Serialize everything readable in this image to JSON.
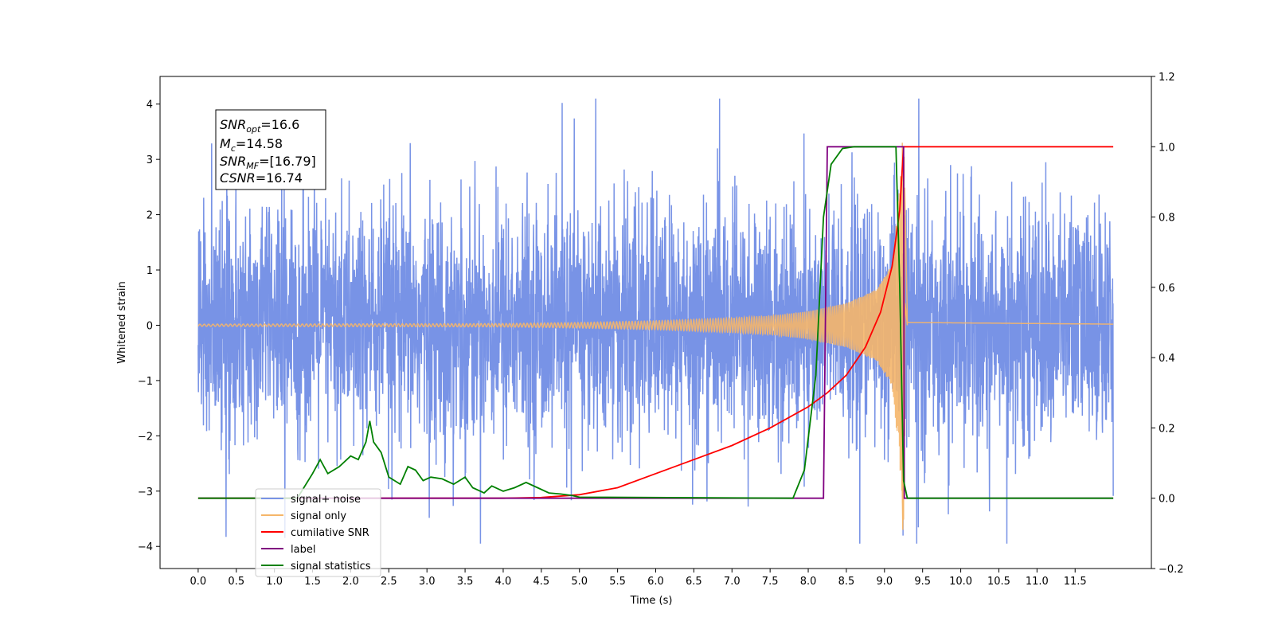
{
  "chart_data": {
    "type": "line",
    "xlabel": "Time (s)",
    "ylabel": "Whitened strain",
    "xlim": [
      -0.5,
      12.5
    ],
    "ylim": [
      -4.4,
      4.5
    ],
    "ylim_right": [
      -0.2,
      1.2
    ],
    "grid": false,
    "legend_position": "lower-left",
    "x_ticks": [
      "0.0",
      "0.5",
      "1.0",
      "1.5",
      "2.0",
      "2.5",
      "3.0",
      "3.5",
      "4.0",
      "4.5",
      "5.0",
      "5.5",
      "6.0",
      "6.5",
      "7.0",
      "7.5",
      "8.0",
      "8.5",
      "9.0",
      "9.5",
      "10.0",
      "10.5",
      "11.0",
      "11.5"
    ],
    "y_ticks_left": [
      "4",
      "3",
      "2",
      "1",
      "0",
      "−1",
      "−2",
      "−3",
      "−4"
    ],
    "y_ticks_right": [
      "1.2",
      "1.0",
      "0.8",
      "0.6",
      "0.4",
      "0.2",
      "0.0",
      "−0.2"
    ],
    "annotation": {
      "snr_opt": {
        "base": "SNR",
        "sub": "opt",
        "value": "=16.6"
      },
      "mc": {
        "base": "M",
        "sub": "c",
        "value": "=14.58"
      },
      "snr_mf": {
        "base": "SNR",
        "sub": "MF",
        "value": "=[16.79]"
      },
      "csnr": {
        "base": "CSNR",
        "value": "=16.74"
      }
    },
    "series": [
      {
        "name": "signal+ noise",
        "axis": "left",
        "color": "#7893e6",
        "description_note": "noise-dominated strain, values roughly within ±2.5 with spikes to about ±4 over 0–12 s",
        "x_range": [
          0.0,
          12.0
        ],
        "amplitude": 2.2,
        "min": -3.95,
        "max": 4.1
      },
      {
        "name": "signal only",
        "axis": "left",
        "color": "#f5b66a",
        "chirp_points": [
          [
            0.0,
            0.02
          ],
          [
            4.0,
            0.03
          ],
          [
            5.0,
            0.05
          ],
          [
            6.0,
            0.08
          ],
          [
            7.0,
            0.13
          ],
          [
            7.5,
            0.17
          ],
          [
            8.0,
            0.25
          ],
          [
            8.5,
            0.4
          ],
          [
            8.9,
            0.65
          ],
          [
            9.1,
            1.1
          ],
          [
            9.2,
            2.5
          ],
          [
            9.25,
            3.7
          ],
          [
            9.3,
            0.05
          ],
          [
            12.0,
            0.02
          ]
        ]
      },
      {
        "name": "cumilative SNR",
        "axis": "right",
        "color": "#ff0000",
        "x": [
          0.0,
          4.0,
          4.5,
          5.0,
          5.5,
          6.0,
          6.5,
          7.0,
          7.5,
          8.0,
          8.25,
          8.5,
          8.75,
          8.95,
          9.1,
          9.2,
          9.25,
          12.0
        ],
        "y": [
          0.0,
          0.0,
          0.002,
          0.01,
          0.03,
          0.07,
          0.11,
          0.15,
          0.2,
          0.26,
          0.3,
          0.35,
          0.43,
          0.53,
          0.66,
          0.82,
          1.0,
          1.0
        ]
      },
      {
        "name": "label",
        "axis": "right",
        "color": "#800080",
        "x": [
          0.0,
          8.2,
          8.25,
          9.25,
          9.26,
          12.0
        ],
        "y": [
          0.0,
          0.0,
          1.0,
          1.0,
          0.0,
          0.0
        ]
      },
      {
        "name": "signal statistics",
        "axis": "right",
        "color": "#008000",
        "x": [
          0.0,
          1.3,
          1.5,
          1.6,
          1.7,
          1.85,
          2.0,
          2.1,
          2.2,
          2.25,
          2.3,
          2.4,
          2.5,
          2.65,
          2.75,
          2.85,
          2.95,
          3.05,
          3.2,
          3.35,
          3.5,
          3.6,
          3.75,
          3.85,
          4.0,
          4.15,
          4.3,
          4.45,
          4.6,
          4.75,
          4.9,
          5.0,
          7.8,
          7.95,
          8.1,
          8.2,
          8.3,
          8.45,
          8.6,
          9.15,
          9.2,
          9.25,
          9.3,
          12.0
        ],
        "y": [
          0.0,
          0.0,
          0.07,
          0.11,
          0.07,
          0.09,
          0.12,
          0.11,
          0.16,
          0.22,
          0.16,
          0.13,
          0.06,
          0.04,
          0.09,
          0.08,
          0.05,
          0.06,
          0.055,
          0.04,
          0.06,
          0.03,
          0.015,
          0.035,
          0.02,
          0.03,
          0.045,
          0.03,
          0.015,
          0.012,
          0.008,
          0.003,
          0.0,
          0.08,
          0.35,
          0.8,
          0.95,
          0.995,
          1.0,
          1.0,
          0.6,
          0.05,
          0.0,
          0.0
        ]
      }
    ],
    "legend": [
      {
        "label": "signal+ noise",
        "color": "#7893e6"
      },
      {
        "label": "signal only",
        "color": "#f5b66a"
      },
      {
        "label": "cumilative SNR",
        "color": "#ff0000"
      },
      {
        "label": "label",
        "color": "#800080"
      },
      {
        "label": "signal statistics",
        "color": "#008000"
      }
    ]
  }
}
